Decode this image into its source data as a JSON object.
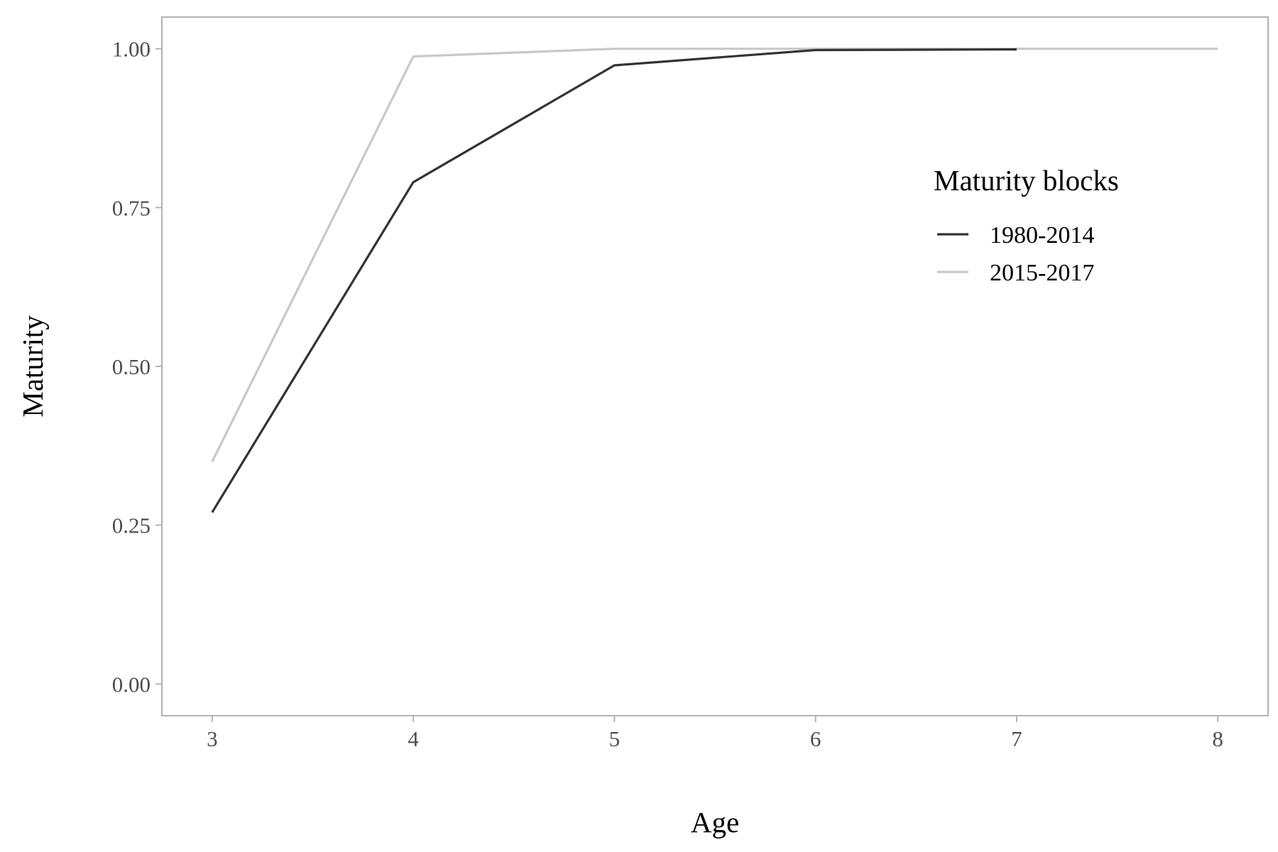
{
  "chart_data": {
    "type": "line",
    "title": "",
    "xlabel": "Age",
    "ylabel": "Maturity",
    "xlim": [
      2.75,
      8.25
    ],
    "ylim": [
      -0.05,
      1.05
    ],
    "x_ticks": [
      3,
      4,
      5,
      6,
      7,
      8
    ],
    "x_tick_labels": [
      "3",
      "4",
      "5",
      "6",
      "7",
      "8"
    ],
    "y_ticks": [
      0,
      0.25,
      0.5,
      0.75,
      1.0
    ],
    "y_tick_labels": [
      "0.00",
      "0.25",
      "0.50",
      "0.75",
      "1.00"
    ],
    "grid": false,
    "legend": {
      "title": "Maturity blocks",
      "placement": "inside-top-right"
    },
    "series": [
      {
        "name": "1980-2014",
        "color": "#333333",
        "x": [
          3,
          4,
          5,
          6,
          7
        ],
        "values": [
          0.27,
          0.79,
          0.974,
          0.998,
          0.999
        ]
      },
      {
        "name": "2015-2017",
        "color": "#c8c8c8",
        "x": [
          3,
          4,
          5,
          6,
          7,
          8
        ],
        "values": [
          0.35,
          0.988,
          1.0,
          1.0,
          1.0,
          1.0
        ]
      }
    ]
  }
}
